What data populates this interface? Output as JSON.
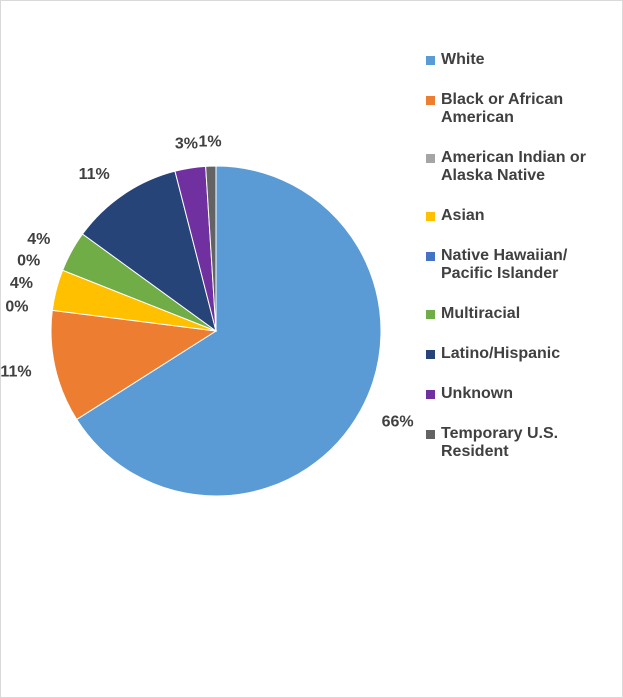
{
  "chart_data": {
    "type": "pie",
    "categories": [
      "White",
      "Black or African American",
      "American Indian or Alaska Native",
      "Asian",
      "Native Hawaiian/ Pacific Islander",
      "Multiracial",
      "Latino/Hispanic",
      "Unknown",
      "Temporary U.S. Resident"
    ],
    "values": [
      66,
      11,
      0,
      4,
      0,
      4,
      11,
      3,
      1
    ],
    "value_labels": [
      "66%",
      "11%",
      "0%",
      "4%",
      "0%",
      "4%",
      "11%",
      "3%",
      "1%"
    ],
    "colors": [
      "#5b9bd5",
      "#ed7d31",
      "#a5a5a5",
      "#ffc000",
      "#4472c4",
      "#70ad47",
      "#264478",
      "#7030a0",
      "#636363"
    ],
    "legend": "right"
  }
}
